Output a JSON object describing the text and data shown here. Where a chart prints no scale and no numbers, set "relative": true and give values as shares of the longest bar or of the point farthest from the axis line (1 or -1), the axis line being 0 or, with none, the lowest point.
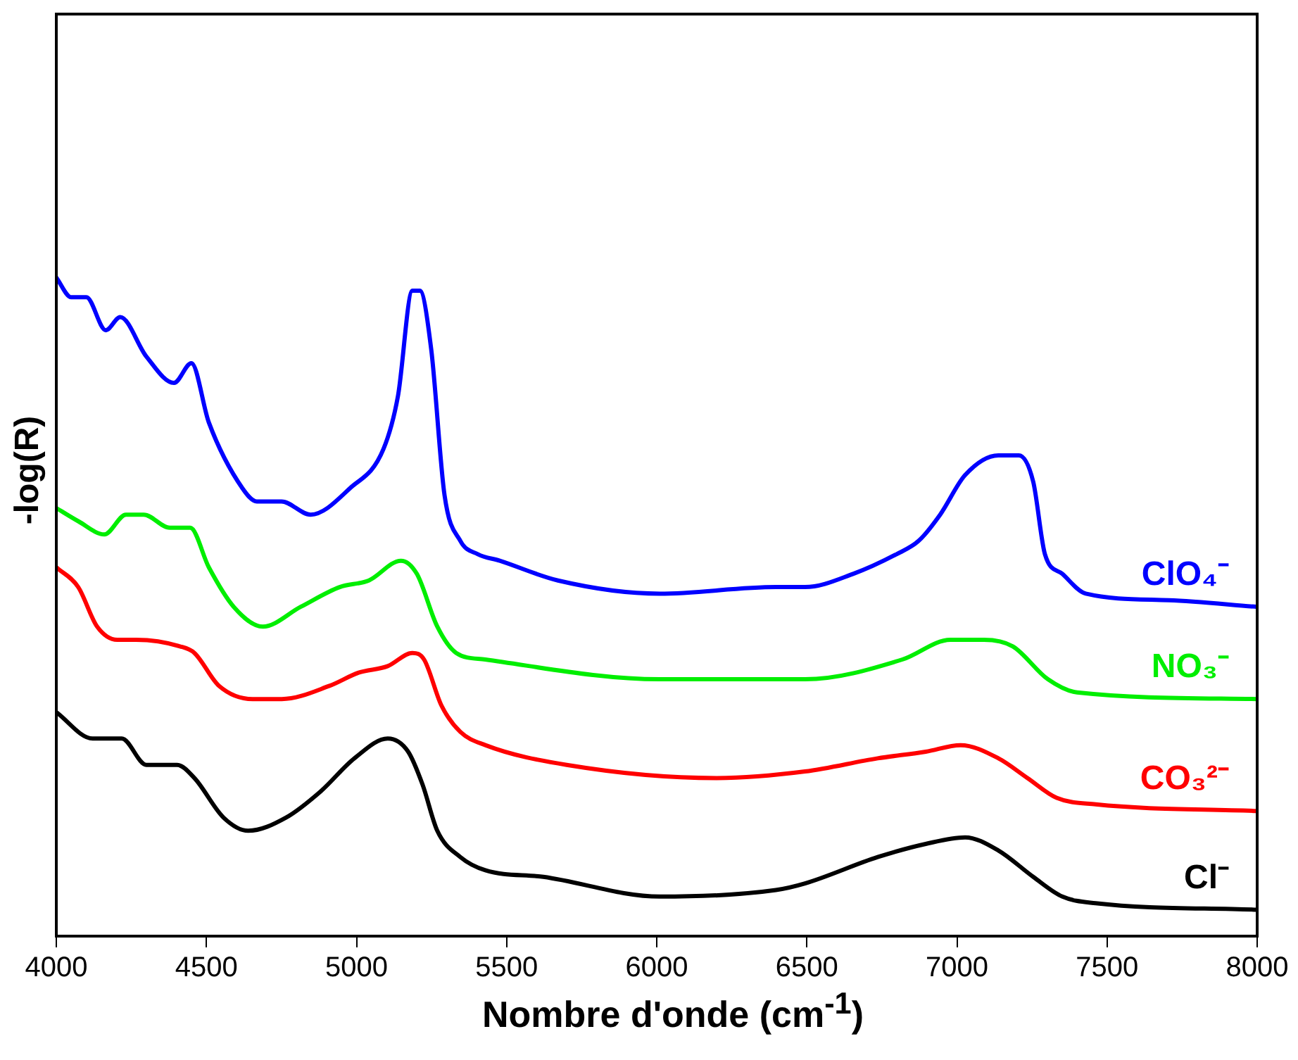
{
  "chart_data": {
    "type": "line",
    "relative": true,
    "xlabel": "Nombre d'onde (cm$^{-1}$)",
    "ylabel": "-log(R)",
    "xlim": [
      4000,
      8000
    ],
    "xticks": [
      4000,
      4500,
      5000,
      5500,
      6000,
      6500,
      7000,
      7500,
      8000
    ],
    "grid": false,
    "legend": false,
    "marker": "none",
    "line_style": "solid",
    "series": [
      {
        "name": "ClO₄⁻",
        "color": "#0000ff",
        "x": [
          4000,
          4050,
          4100,
          4165,
          4213,
          4300,
          4392,
          4450,
          4508,
          4620,
          4668,
          4750,
          4847,
          4978,
          5090,
          5138,
          5186,
          5211,
          5249,
          5293,
          5346,
          5404,
          5477,
          5671,
          6010,
          6397,
          6494,
          6654,
          6799,
          6872,
          6944,
          7027,
          7138,
          7206,
          7254,
          7293,
          7351,
          7429,
          7705,
          8000
        ],
        "values": [
          1.0,
          0.97,
          0.97,
          0.92,
          0.94,
          0.88,
          0.84,
          0.87,
          0.78,
          0.68,
          0.66,
          0.66,
          0.64,
          0.68,
          0.74,
          0.82,
          0.98,
          0.98,
          0.89,
          0.67,
          0.6,
          0.58,
          0.57,
          0.54,
          0.52,
          0.53,
          0.53,
          0.55,
          0.58,
          0.6,
          0.64,
          0.7,
          0.73,
          0.73,
          0.69,
          0.58,
          0.55,
          0.52,
          0.51,
          0.5
        ]
      },
      {
        "name": "NO₃⁻",
        "color": "#00ee00",
        "x": [
          4000,
          4073,
          4160,
          4232,
          4291,
          4378,
          4446,
          4508,
          4591,
          4688,
          4814,
          4944,
          5041,
          5148,
          5201,
          5269,
          5332,
          5429,
          6010,
          6494,
          6818,
          6978,
          7090,
          7186,
          7303,
          7400,
          8000
        ],
        "values": [
          0.65,
          0.63,
          0.61,
          0.64,
          0.64,
          0.62,
          0.62,
          0.56,
          0.5,
          0.47,
          0.5,
          0.53,
          0.54,
          0.57,
          0.55,
          0.47,
          0.43,
          0.42,
          0.39,
          0.39,
          0.42,
          0.45,
          0.45,
          0.44,
          0.39,
          0.37,
          0.36
        ]
      },
      {
        "name": "CO₃²⁻",
        "color": "#ff0000",
        "x": [
          4000,
          4073,
          4136,
          4203,
          4266,
          4412,
          4460,
          4542,
          4654,
          4751,
          4910,
          5007,
          5104,
          5186,
          5225,
          5283,
          5346,
          5429,
          5700,
          6200,
          6494,
          6736,
          6896,
          7012,
          7138,
          7235,
          7332,
          7462,
          8000
        ],
        "values": [
          0.56,
          0.53,
          0.47,
          0.45,
          0.45,
          0.44,
          0.43,
          0.38,
          0.36,
          0.36,
          0.38,
          0.4,
          0.41,
          0.43,
          0.42,
          0.35,
          0.31,
          0.29,
          0.26,
          0.24,
          0.25,
          0.27,
          0.28,
          0.29,
          0.27,
          0.24,
          0.21,
          0.2,
          0.19
        ]
      },
      {
        "name": "Cl⁻",
        "color": "#000000",
        "x": [
          4000,
          4121,
          4218,
          4300,
          4402,
          4460,
          4557,
          4639,
          4765,
          4881,
          4993,
          5104,
          5172,
          5220,
          5269,
          5346,
          5429,
          5622,
          6010,
          6397,
          6494,
          6736,
          6896,
          7027,
          7138,
          7254,
          7351,
          7462,
          8000
        ],
        "values": [
          0.34,
          0.3,
          0.3,
          0.26,
          0.26,
          0.24,
          0.18,
          0.16,
          0.18,
          0.22,
          0.27,
          0.3,
          0.28,
          0.23,
          0.16,
          0.12,
          0.1,
          0.09,
          0.06,
          0.07,
          0.08,
          0.12,
          0.14,
          0.15,
          0.13,
          0.09,
          0.06,
          0.05,
          0.04
        ]
      }
    ]
  }
}
